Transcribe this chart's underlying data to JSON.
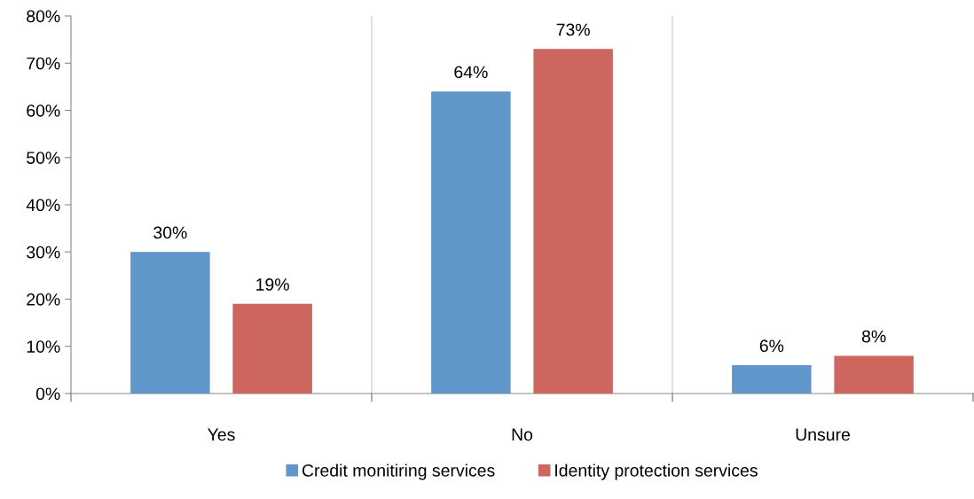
{
  "chart_data": {
    "type": "bar",
    "categories": [
      "Yes",
      "No",
      "Unsure"
    ],
    "series": [
      {
        "name": "Credit monitiring services",
        "color": "#6096c9",
        "values": [
          30,
          64,
          6
        ],
        "value_labels": [
          "30%",
          "64%",
          "6%"
        ]
      },
      {
        "name": "Identity protection services",
        "color": "#cd665f",
        "values": [
          19,
          73,
          8
        ],
        "value_labels": [
          "19%",
          "73%",
          "8%"
        ]
      }
    ],
    "ylim": [
      0,
      80
    ],
    "yticks": [
      {
        "value": 0,
        "label": "0%"
      },
      {
        "value": 10,
        "label": "10%"
      },
      {
        "value": 20,
        "label": "20%"
      },
      {
        "value": 30,
        "label": "30%"
      },
      {
        "value": 40,
        "label": "40%"
      },
      {
        "value": 50,
        "label": "50%"
      },
      {
        "value": 60,
        "label": "60%"
      },
      {
        "value": 70,
        "label": "70%"
      },
      {
        "value": 80,
        "label": "80%"
      }
    ],
    "grid": "x",
    "legend": "bottom"
  }
}
